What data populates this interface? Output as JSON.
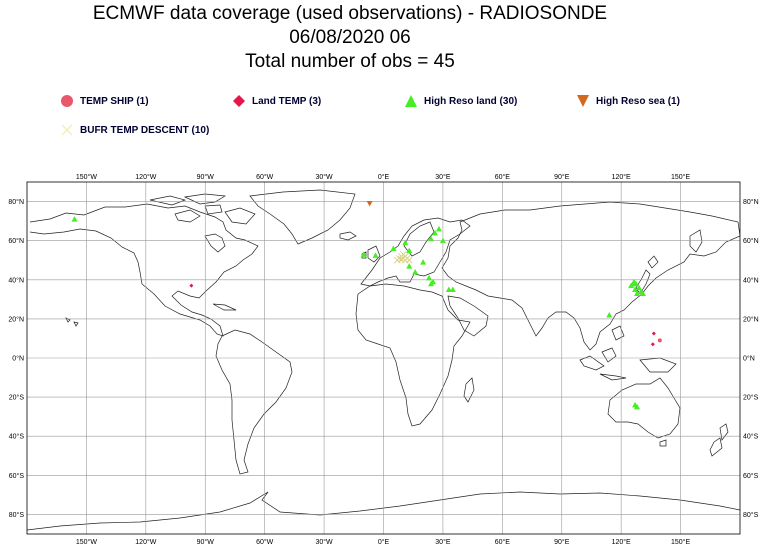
{
  "title": {
    "line1": "ECMWF data coverage (used observations) - RADIOSONDE",
    "line2": "06/08/2020 06",
    "line3": "Total number of obs = 45"
  },
  "legend": [
    {
      "label": "TEMP SHIP (1)",
      "icon": "circle-icon",
      "color": "#e8586a"
    },
    {
      "label": "Land TEMP (3)",
      "icon": "diamond-icon",
      "color": "#e8154a"
    },
    {
      "label": "High Reso land (30)",
      "icon": "triangle-up-icon",
      "color": "#44ee22"
    },
    {
      "label": "High Reso sea (1)",
      "icon": "triangle-down-icon",
      "color": "#d2691e"
    },
    {
      "label": "BUFR TEMP DESCENT (10)",
      "icon": "cross-icon",
      "color": "#eeeeaa"
    }
  ],
  "axes": {
    "lon_labels": [
      "150°W",
      "120°W",
      "90°W",
      "60°W",
      "30°W",
      "0°E",
      "30°E",
      "60°E",
      "90°E",
      "120°E",
      "150°E"
    ],
    "lon_values": [
      -150,
      -120,
      -90,
      -60,
      -30,
      0,
      30,
      60,
      90,
      120,
      150
    ],
    "lat_labels": [
      "80°N",
      "60°N",
      "40°N",
      "20°N",
      "0°N",
      "20°S",
      "40°S",
      "60°S",
      "80°S"
    ],
    "lat_values": [
      80,
      60,
      40,
      20,
      0,
      -20,
      -40,
      -60,
      -80
    ],
    "lon_range": [
      -180,
      180
    ],
    "lat_range": [
      -90,
      90
    ]
  },
  "observations": {
    "temp_ship": [
      [
        139.5,
        9
      ]
    ],
    "land_temp": [
      [
        -97,
        37
      ],
      [
        136.5,
        12.5
      ],
      [
        136,
        7
      ]
    ],
    "high_reso_land": [
      [
        -156,
        71
      ],
      [
        -10,
        53
      ],
      [
        -4,
        52.5
      ],
      [
        5,
        56
      ],
      [
        11,
        59
      ],
      [
        13,
        55
      ],
      [
        13,
        47
      ],
      [
        20,
        49
      ],
      [
        16,
        44
      ],
      [
        23,
        41
      ],
      [
        24,
        38
      ],
      [
        25,
        39
      ],
      [
        33,
        35
      ],
      [
        35,
        35
      ],
      [
        26,
        64
      ],
      [
        28,
        66
      ],
      [
        24,
        61
      ],
      [
        30,
        60
      ],
      [
        126,
        38
      ],
      [
        127,
        35
      ],
      [
        129,
        36
      ],
      [
        128,
        33
      ],
      [
        127.5,
        38
      ],
      [
        125,
        37
      ],
      [
        126.5,
        39
      ],
      [
        130,
        34
      ],
      [
        131,
        33
      ],
      [
        114,
        22
      ],
      [
        127,
        -24
      ],
      [
        128,
        -25
      ]
    ],
    "high_reso_sea": [
      [
        -7,
        79
      ]
    ],
    "bufr_temp_descent": [
      [
        8,
        51
      ],
      [
        9,
        50.5
      ],
      [
        10,
        51
      ],
      [
        11,
        50
      ],
      [
        12,
        51
      ],
      [
        9,
        52
      ],
      [
        10,
        53
      ],
      [
        11,
        52
      ],
      [
        7,
        50
      ],
      [
        13,
        50
      ]
    ]
  }
}
